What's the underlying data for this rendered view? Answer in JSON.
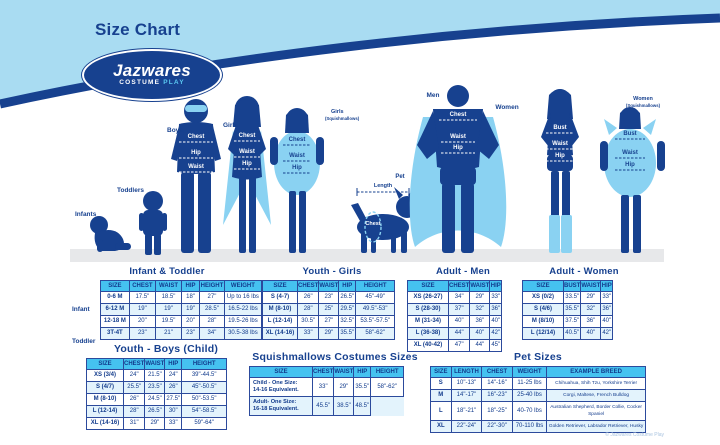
{
  "header": {
    "title": "Size Chart",
    "logo": {
      "brand": "Jazwares",
      "sub_costume": "COSTUME",
      "sub_play": "PLAY"
    }
  },
  "figures": {
    "infants": "Infants",
    "toddlers": "Toddlers",
    "boys": "Boys",
    "girls": "Girls",
    "girls_squish_line1": "Girls",
    "girls_squish_line2": "(Squishmallows)",
    "pet": "Pet",
    "men": "Men",
    "women": "Women",
    "women_squish_line1": "Women",
    "women_squish_line2": "(Squishmallows)",
    "labels": {
      "chest": "Chest",
      "waist": "Waist",
      "hip": "Hip",
      "bust": "Bust",
      "length": "Length"
    }
  },
  "tables": {
    "infant_toddler": {
      "title": "Infant & Toddler",
      "group_labels": [
        "Infant",
        "Toddler"
      ],
      "headers": [
        "SIZE",
        "CHEST",
        "WAIST",
        "HIP",
        "HEIGHT",
        "WEIGHT"
      ],
      "rows": [
        [
          "0-6 M",
          "17.5\"",
          "18.5\"",
          "18\"",
          "27\"",
          "Up to 16 lbs"
        ],
        [
          "6-12 M",
          "19\"",
          "19\"",
          "19\"",
          "28.5\"",
          "16.5-22 lbs"
        ],
        [
          "12-18 M",
          "20\"",
          "19.5\"",
          "20\"",
          "28\"",
          "19.5-26 lbs"
        ],
        [
          "3T-4T",
          "23\"",
          "21\"",
          "23\"",
          "34\"",
          "30.5-38 lbs"
        ]
      ]
    },
    "youth_girls": {
      "title": "Youth - Girls",
      "headers": [
        "SIZE",
        "CHEST",
        "WAIST",
        "HIP",
        "HEIGHT"
      ],
      "rows": [
        [
          "S (4-7)",
          "26\"",
          "23\"",
          "26.5\"",
          "45\"-49\""
        ],
        [
          "M (8-10)",
          "28\"",
          "25\"",
          "29.5\"",
          "49.5\"-53\""
        ],
        [
          "L (12-14)",
          "30.5\"",
          "27\"",
          "32.5\"",
          "53.5\"-57.5\""
        ],
        [
          "XL (14-16)",
          "33\"",
          "29\"",
          "35.5\"",
          "58\"-62\""
        ]
      ]
    },
    "adult_men": {
      "title": "Adult - Men",
      "headers": [
        "SIZE",
        "CHEST",
        "WAIST",
        "HIP"
      ],
      "rows": [
        [
          "XS (26-27)",
          "34\"",
          "29\"",
          "33\""
        ],
        [
          "S (28-30)",
          "37\"",
          "32\"",
          "36\""
        ],
        [
          "M (31-34)",
          "40\"",
          "36\"",
          "40\""
        ],
        [
          "L (36-38)",
          "44\"",
          "40\"",
          "42\""
        ],
        [
          "XL (40-42)",
          "47\"",
          "44\"",
          "45\""
        ]
      ]
    },
    "adult_women": {
      "title": "Adult - Women",
      "headers": [
        "SIZE",
        "BUST",
        "WAIST",
        "HIP"
      ],
      "rows": [
        [
          "XS (0/2)",
          "33.5\"",
          "29\"",
          "33\""
        ],
        [
          "S (4/6)",
          "35.5\"",
          "32\"",
          "36\""
        ],
        [
          "M (8/10)",
          "37.5\"",
          "36\"",
          "40\""
        ],
        [
          "L (12/14)",
          "40.5\"",
          "40\"",
          "42\""
        ]
      ]
    },
    "youth_boys": {
      "title": "Youth - Boys (Child)",
      "headers": [
        "SIZE",
        "CHEST",
        "WAIST",
        "HIP",
        "HEIGHT"
      ],
      "rows": [
        [
          "XS (3/4)",
          "24\"",
          "21.5\"",
          "24\"",
          "39\"-44.5\""
        ],
        [
          "S (4/7)",
          "25.5\"",
          "23.5\"",
          "26\"",
          "45\"-50.5\""
        ],
        [
          "M (8-10)",
          "26\"",
          "24.5\"",
          "27.5\"",
          "50\"-53.5\""
        ],
        [
          "L (12-14)",
          "28\"",
          "26.5\"",
          "30\"",
          "54\"-58.5\""
        ],
        [
          "XL (14-16)",
          "31\"",
          "29\"",
          "33\"",
          "59\"-64\""
        ]
      ]
    },
    "squishmallows": {
      "title": "Squishmallows Costumes Sizes",
      "headers": [
        "SIZE",
        "CHEST",
        "WAIST",
        "HIP",
        "HEIGHT"
      ],
      "rows": [
        [
          "Child - One Size:\n14-16 Equivalent.",
          "33\"",
          "29\"",
          "35.5\"",
          "58\"-62\""
        ],
        [
          "Adult- One Size:\n16-18 Equivalent.",
          "45.5\"",
          "38.5\"",
          "48.5\"",
          ""
        ]
      ]
    },
    "pet": {
      "title": "Pet Sizes",
      "headers": [
        "SIZE",
        "LENGTH",
        "CHEST",
        "WEIGHT",
        "EXAMPLE BREED"
      ],
      "rows": [
        [
          "S",
          "10\"-13\"",
          "14\"-16\"",
          "11-25 lbs",
          "Chihuahua, Shih Tzu, Yorkshire Terrier"
        ],
        [
          "M",
          "14\"-17\"",
          "16\"-23\"",
          "25-40 lbs",
          "Corgi, Maltese, French Bulldog"
        ],
        [
          "L",
          "18\"-21\"",
          "18\"-25\"",
          "40-70 lbs",
          "Australian Shepherd, Border Collie, Cocker Spaniel"
        ],
        [
          "XL",
          "22\"-24\"",
          "22\"-30\"",
          "70-110 lbs",
          "Golden Retriever, Labrador Retriever, Husky"
        ]
      ]
    }
  },
  "footer": {
    "note": "© Jazwares Costume Play"
  },
  "colors": {
    "navy": "#17418F",
    "banner_light_blue": "#A9DCF2",
    "table_header_blue": "#45C2F0",
    "zebra_row": "#E3F3FC",
    "cape_blue": "#8AD2F2",
    "ground_gray": "#E7E8EA"
  }
}
